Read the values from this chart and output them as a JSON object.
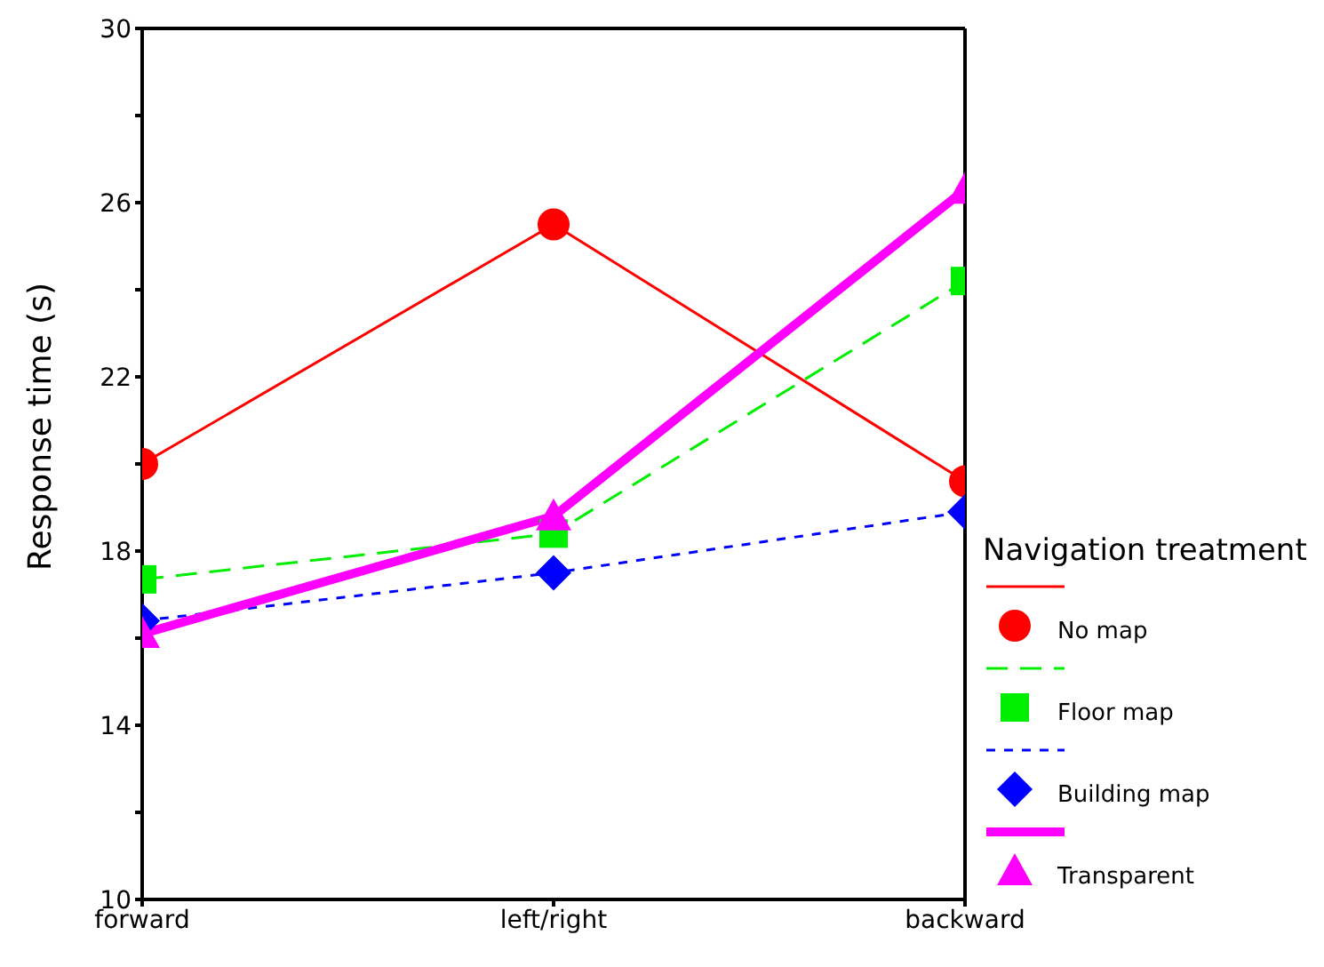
{
  "chart_data": {
    "type": "line",
    "ylabel": "Response time (s)",
    "legend_title": "Navigation treatment",
    "categories": [
      "forward",
      "left/right",
      "backward"
    ],
    "series": [
      {
        "name": "No map",
        "color": "#ff0000",
        "values": [
          20.0,
          25.5,
          19.6
        ],
        "marker": "circle",
        "line_style": "solid"
      },
      {
        "name": "Floor map",
        "color": "#00ee00",
        "values": [
          17.35,
          18.4,
          24.2
        ],
        "marker": "square",
        "line_style": "dashed"
      },
      {
        "name": "Building map",
        "color": "#0000ff",
        "values": [
          16.4,
          17.5,
          18.9
        ],
        "marker": "diamond",
        "line_style": "dotted"
      },
      {
        "name": "Transparent",
        "color": "#ff00ff",
        "values": [
          16.1,
          18.8,
          26.3
        ],
        "marker": "triangle",
        "line_style": "solid"
      }
    ],
    "ylim": [
      10,
      30
    ],
    "yticks": [
      10,
      {
        "value": 12,
        "label": null
      },
      14,
      {
        "value": 16,
        "label": null
      },
      18,
      {
        "value": 20,
        "label": null
      },
      22,
      {
        "value": 24,
        "label": null
      },
      26,
      {
        "value": 28,
        "label": null
      },
      30
    ],
    "grid": false,
    "legend": "right"
  }
}
